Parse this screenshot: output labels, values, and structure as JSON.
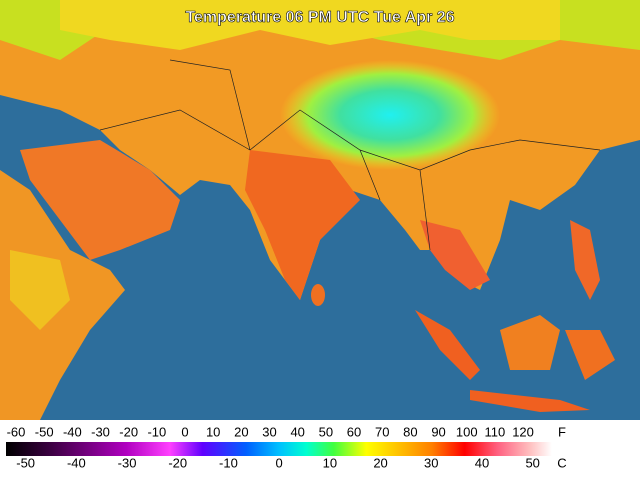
{
  "title": "Temperature 06 PM UTC Tue Apr 26",
  "legend": {
    "fahrenheit_unit": "F",
    "fahrenheit_labels": [
      -60,
      -50,
      -40,
      -30,
      -20,
      -10,
      0,
      10,
      20,
      30,
      40,
      50,
      60,
      70,
      80,
      90,
      100,
      110,
      120
    ],
    "celsius_unit": "C",
    "celsius_labels": [
      -50,
      -40,
      -30,
      -20,
      -10,
      0,
      10,
      20,
      30,
      40,
      50
    ]
  }
}
